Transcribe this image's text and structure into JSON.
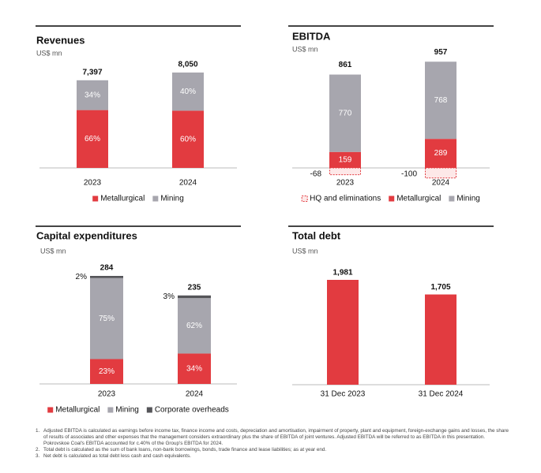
{
  "chart_data": [
    {
      "type": "share_bar",
      "title": "Revenues",
      "subtitle": "US$ mn",
      "categories": [
        "2023",
        "2024"
      ],
      "totals": [
        7397,
        8050
      ],
      "total_labels": [
        "7,397",
        "8,050"
      ],
      "series": [
        {
          "name": "Metallurgical",
          "color": "#e23b40",
          "values": [
            66,
            60
          ],
          "value_labels": [
            "66%",
            "60%"
          ]
        },
        {
          "name": "Mining",
          "color": "#a7a6ae",
          "values": [
            34,
            40
          ],
          "value_labels": [
            "34%",
            "40%"
          ]
        }
      ]
    },
    {
      "type": "stacked_bar",
      "title": "EBITDA",
      "subtitle": "US$ mn",
      "categories": [
        "2023",
        "2024"
      ],
      "totals": [
        861,
        957
      ],
      "series": [
        {
          "name": "HQ and eliminations",
          "color": "#e23b40",
          "values": [
            -68,
            -100
          ]
        },
        {
          "name": "Metallurgical",
          "color": "#e23b40",
          "values": [
            159,
            289
          ]
        },
        {
          "name": "Mining",
          "color": "#a7a6ae",
          "values": [
            770,
            768
          ]
        }
      ]
    },
    {
      "type": "share_bar",
      "title": "Capital expenditures",
      "subtitle": "US$ mn",
      "categories": [
        "2023",
        "2024"
      ],
      "totals": [
        284,
        235
      ],
      "series": [
        {
          "name": "Metallurgical",
          "color": "#e23b40",
          "values": [
            23,
            34
          ],
          "value_labels": [
            "23%",
            "34%"
          ]
        },
        {
          "name": "Mining",
          "color": "#a7a6ae",
          "values": [
            75,
            62
          ],
          "value_labels": [
            "75%",
            "62%"
          ]
        },
        {
          "name": "Corporate overheads",
          "color": "#555559",
          "values": [
            2,
            3
          ],
          "value_labels": [
            "2%",
            "3%"
          ]
        }
      ]
    },
    {
      "type": "bar",
      "title": "Total debt",
      "subtitle": "US$ mn",
      "categories": [
        "31 Dec 2023",
        "31 Dec 2024"
      ],
      "values": [
        1981,
        1705
      ],
      "value_labels": [
        "1,981",
        "1,705"
      ],
      "color": "#e23b40"
    }
  ],
  "footnotes": [
    {
      "number": "1.",
      "text": "Adjusted EBITDA is calculated as earnings before income tax, finance income and costs, depreciation and amortisation, impairment of property, plant and equipment, foreign-exchange gains and losses, the share of results of associates and other expenses that the management considers extraordinary plus the share of EBITDA of joint ventures. Adjusted EBITDA will be referred to as EBITDA in this presentation. Pokrovskoe Coal's EBITDA accounted for c.40% of the Group's EBITDA for 2024."
    },
    {
      "number": "2.",
      "text": "Total debt is calculated as the sum of bank loans, non-bank borrowings, bonds, trade finance and lease liabilities; as at year end."
    },
    {
      "number": "3.",
      "text": "Net debt is calculated as total debt less cash and cash equivalents."
    }
  ]
}
